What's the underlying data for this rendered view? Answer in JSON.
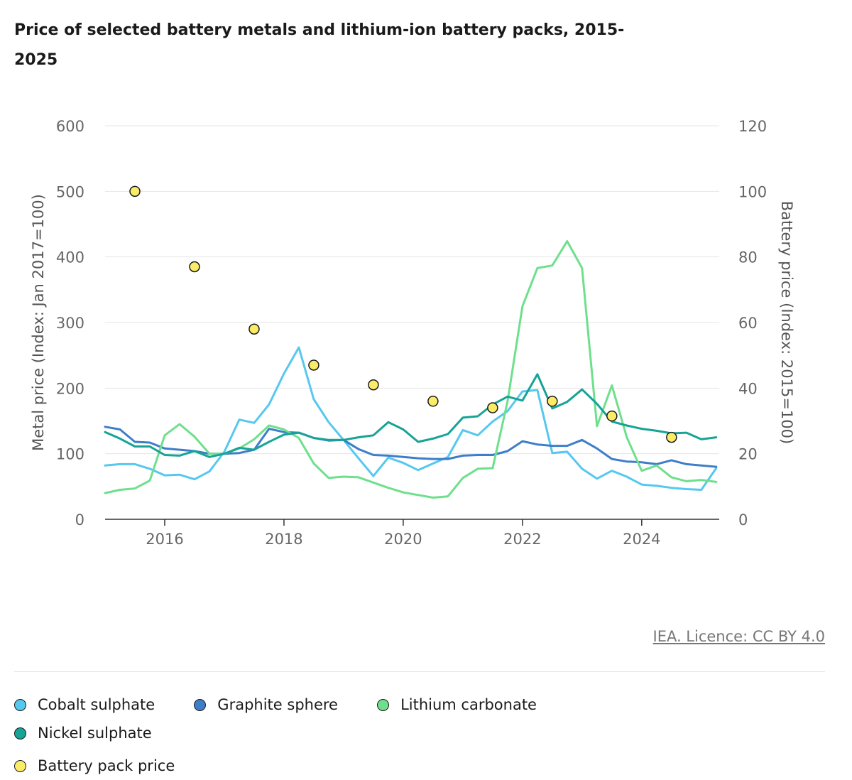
{
  "chart_data": {
    "type": "line",
    "title": "Price of selected battery metals and lithium-ion battery packs, 2015-2025",
    "xlabel": "",
    "ylabel": "Metal price (Index: Jan 2017=100)",
    "y2label": "Battery price (Index: 2015=100)",
    "xlim": [
      2015.0,
      2025.3
    ],
    "ylim": [
      0,
      600
    ],
    "y2lim": [
      0,
      120
    ],
    "x_ticks": [
      "2016",
      "2018",
      "2020",
      "2022",
      "2024"
    ],
    "y_ticks": [
      "0",
      "100",
      "200",
      "300",
      "400",
      "500",
      "600"
    ],
    "y2_ticks": [
      "0",
      "20",
      "40",
      "60",
      "80",
      "100",
      "120"
    ],
    "grid": true,
    "series": [
      {
        "name": "Cobalt sulphate",
        "color": "#56c8ef",
        "axis": "left",
        "x": [
          2015.0,
          2015.25,
          2015.5,
          2015.75,
          2016.0,
          2016.25,
          2016.5,
          2016.75,
          2017.0,
          2017.25,
          2017.5,
          2017.75,
          2018.0,
          2018.25,
          2018.5,
          2018.75,
          2019.0,
          2019.25,
          2019.5,
          2019.75,
          2020.0,
          2020.25,
          2020.5,
          2020.75,
          2021.0,
          2021.25,
          2021.5,
          2021.75,
          2022.0,
          2022.25,
          2022.5,
          2022.75,
          2023.0,
          2023.25,
          2023.5,
          2023.75,
          2024.0,
          2024.25,
          2024.5,
          2024.75,
          2025.0,
          2025.25
        ],
        "values": [
          82,
          84,
          84,
          77,
          67,
          68,
          61,
          73,
          103,
          152,
          147,
          175,
          222,
          262,
          183,
          148,
          121,
          93,
          66,
          94,
          86,
          75,
          85,
          95,
          136,
          128,
          149,
          165,
          195,
          197,
          101,
          103,
          77,
          62,
          74,
          65,
          53,
          51,
          48,
          46,
          45,
          78
        ]
      },
      {
        "name": "Graphite sphere",
        "color": "#3e7ec9",
        "axis": "left",
        "x": [
          2015.0,
          2015.25,
          2015.5,
          2015.75,
          2016.0,
          2016.25,
          2016.5,
          2016.75,
          2017.0,
          2017.25,
          2017.5,
          2017.75,
          2018.0,
          2018.25,
          2018.5,
          2018.75,
          2019.0,
          2019.25,
          2019.5,
          2019.75,
          2020.0,
          2020.25,
          2020.5,
          2020.75,
          2021.0,
          2021.25,
          2021.5,
          2021.75,
          2022.0,
          2022.25,
          2022.5,
          2022.75,
          2023.0,
          2023.25,
          2023.5,
          2023.75,
          2024.0,
          2024.25,
          2024.5,
          2024.75,
          2025.0,
          2025.25
        ],
        "values": [
          141,
          137,
          118,
          117,
          108,
          106,
          104,
          100,
          100,
          101,
          106,
          138,
          133,
          132,
          124,
          120,
          121,
          107,
          98,
          97,
          95,
          93,
          92,
          92,
          97,
          98,
          98,
          104,
          119,
          114,
          112,
          112,
          121,
          108,
          92,
          88,
          87,
          84,
          90,
          84,
          82,
          80
        ]
      },
      {
        "name": "Lithium carbonate",
        "color": "#6ee08c",
        "axis": "left",
        "x": [
          2015.0,
          2015.25,
          2015.5,
          2015.75,
          2016.0,
          2016.25,
          2016.5,
          2016.75,
          2017.0,
          2017.25,
          2017.5,
          2017.75,
          2018.0,
          2018.25,
          2018.5,
          2018.75,
          2019.0,
          2019.25,
          2019.5,
          2019.75,
          2020.0,
          2020.25,
          2020.5,
          2020.75,
          2021.0,
          2021.25,
          2021.5,
          2021.75,
          2022.0,
          2022.25,
          2022.5,
          2022.75,
          2023.0,
          2023.25,
          2023.5,
          2023.75,
          2024.0,
          2024.25,
          2024.5,
          2024.75,
          2025.0,
          2025.25
        ],
        "values": [
          40,
          45,
          47,
          59,
          128,
          145,
          126,
          100,
          100,
          108,
          122,
          143,
          137,
          124,
          85,
          63,
          65,
          64,
          56,
          48,
          41,
          37,
          33,
          35,
          63,
          77,
          78,
          180,
          325,
          383,
          387,
          424,
          383,
          142,
          204,
          125,
          74,
          82,
          64,
          58,
          60,
          57
        ]
      },
      {
        "name": "Nickel sulphate",
        "color": "#17a396",
        "axis": "left",
        "x": [
          2015.0,
          2015.25,
          2015.5,
          2015.75,
          2016.0,
          2016.25,
          2016.5,
          2016.75,
          2017.0,
          2017.25,
          2017.5,
          2017.75,
          2018.0,
          2018.25,
          2018.5,
          2018.75,
          2019.0,
          2019.25,
          2019.5,
          2019.75,
          2020.0,
          2020.25,
          2020.5,
          2020.75,
          2021.0,
          2021.25,
          2021.5,
          2021.75,
          2022.0,
          2022.25,
          2022.5,
          2022.75,
          2023.0,
          2023.25,
          2023.5,
          2023.75,
          2024.0,
          2024.25,
          2024.5,
          2024.75,
          2025.0,
          2025.25
        ],
        "values": [
          133,
          123,
          111,
          111,
          98,
          97,
          104,
          95,
          100,
          109,
          106,
          118,
          129,
          132,
          124,
          121,
          121,
          125,
          128,
          148,
          137,
          118,
          123,
          130,
          155,
          157,
          175,
          187,
          181,
          221,
          169,
          179,
          198,
          176,
          149,
          143,
          138,
          135,
          131,
          132,
          122,
          125
        ]
      },
      {
        "name": "Battery pack price",
        "color": "#fbec67",
        "axis": "right",
        "kind": "markers",
        "x": [
          2015.5,
          2016.5,
          2017.5,
          2018.5,
          2019.5,
          2020.5,
          2021.5,
          2022.5,
          2023.5,
          2024.5
        ],
        "values": [
          100,
          77,
          58,
          47,
          41,
          36,
          34,
          36,
          31.5,
          25
        ]
      }
    ]
  },
  "source": {
    "label": "IEA. Licence: CC BY 4.0"
  },
  "legend": [
    {
      "label": "Cobalt sulphate",
      "color": "#56c8ef"
    },
    {
      "label": "Graphite sphere",
      "color": "#3e7ec9"
    },
    {
      "label": "Lithium carbonate",
      "color": "#6ee08c"
    },
    {
      "label": "Nickel sulphate",
      "color": "#17a396"
    },
    {
      "label": "Battery pack price",
      "color": "#fbec67"
    }
  ]
}
